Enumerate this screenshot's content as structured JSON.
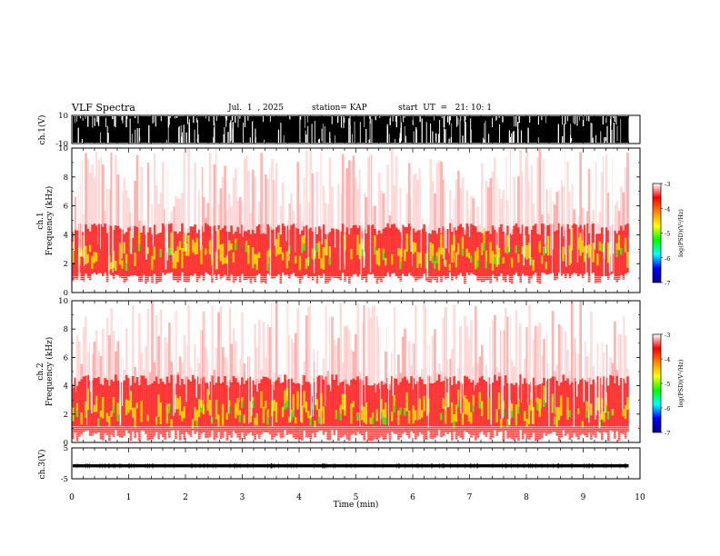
{
  "header": {
    "title": "VLF Spectra",
    "date": "Jul.  1  , 2025",
    "station": "station= KAP",
    "start": "start  UT  =   21: 10: 1"
  },
  "colors": {
    "spectrogram_background": "#ffffff",
    "low": "#ff9a9a",
    "mid": "#ff1a1a",
    "high": "#ffee00",
    "peak": "#22dd22",
    "colorbar": [
      "#000080",
      "#0000ff",
      "#00ffff",
      "#00ff00",
      "#ffff00",
      "#ff8800",
      "#ff0000",
      "#ffffff"
    ]
  },
  "chart_data": [
    {
      "type": "line",
      "name": "waveform-ch1",
      "ylabel": "ch.1(V)",
      "ylim": [
        -10,
        10
      ],
      "yticks": [
        "10",
        "-10"
      ],
      "xlim": [
        0,
        10
      ],
      "note_saturated": true
    },
    {
      "type": "heatmap",
      "name": "spectrogram-ch1",
      "ylabel": "ch.1\nFrequency  (kHz)",
      "ylim": [
        0,
        10
      ],
      "yticks": [
        "10",
        "8",
        "6",
        "4",
        "2",
        "0"
      ],
      "xlim": [
        0,
        10
      ],
      "colorbar": {
        "label": "log(PSD)(V²/Hz)",
        "range": [
          -7,
          -3
        ],
        "ticks": [
          "-3",
          "-4",
          "-5",
          "-6",
          "-7"
        ]
      },
      "dominant_band_khz": [
        1,
        4
      ]
    },
    {
      "type": "heatmap",
      "name": "spectrogram-ch2",
      "ylabel": "ch.2\nFrequency  (kHz)",
      "ylim": [
        0,
        10
      ],
      "yticks": [
        "10",
        "8",
        "6",
        "4",
        "2",
        "0"
      ],
      "xlim": [
        0,
        10
      ],
      "colorbar": {
        "label": "log(PSD)(V²/Hz)",
        "range": [
          -7,
          -3
        ],
        "ticks": [
          "-3",
          "-4",
          "-5",
          "-6",
          "-7"
        ]
      },
      "dominant_band_khz": [
        0.5,
        4
      ]
    },
    {
      "type": "line",
      "name": "waveform-ch3",
      "ylabel": "ch.3(V)",
      "ylim": [
        -5,
        5
      ],
      "yticks": [
        "5",
        "-5"
      ],
      "xlim": [
        0,
        10
      ],
      "approx_amplitude": [
        -1.3,
        -0.3
      ],
      "xlabel": "Time  (min)",
      "xticks": [
        "0",
        "1",
        "2",
        "3",
        "4",
        "5",
        "6",
        "7",
        "8",
        "9",
        "10"
      ]
    }
  ]
}
